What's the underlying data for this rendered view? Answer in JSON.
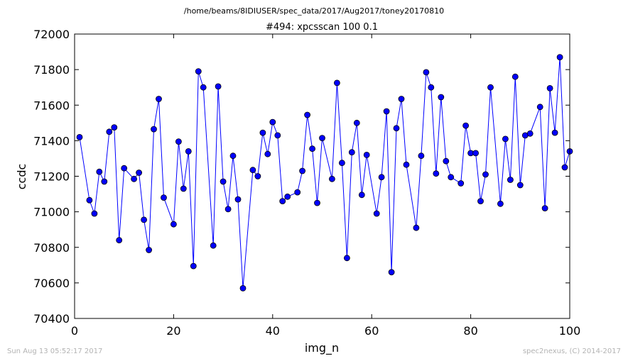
{
  "header": {
    "file_path": "/home/beams/8IDIUSER/spec_data/2017/Aug2017/toney20170810"
  },
  "footer": {
    "timestamp": "Sun Aug 13 05:52:17 2017",
    "credit": "spec2nexus, (C) 2014-2017"
  },
  "chart_data": {
    "type": "line",
    "title": "#494: xpcsscan 100 0.1",
    "xlabel": "img_n",
    "ylabel": "ccdc",
    "xlim": [
      0,
      100
    ],
    "ylim": [
      70400,
      72000
    ],
    "xticks": [
      0,
      20,
      40,
      60,
      80,
      100
    ],
    "yticks": [
      70400,
      70600,
      70800,
      71000,
      71200,
      71400,
      71600,
      71800,
      72000
    ],
    "line_color": "#0000ff",
    "marker_color": "#0000ff",
    "marker": "circle",
    "x": [
      1,
      3,
      4,
      5,
      6,
      7,
      8,
      9,
      10,
      12,
      13,
      14,
      15,
      16,
      17,
      18,
      20,
      21,
      22,
      23,
      24,
      25,
      26,
      28,
      29,
      30,
      31,
      32,
      33,
      34,
      36,
      37,
      38,
      39,
      40,
      41,
      42,
      43,
      45,
      46,
      47,
      48,
      49,
      50,
      52,
      53,
      54,
      55,
      56,
      57,
      58,
      59,
      61,
      62,
      63,
      64,
      65,
      66,
      67,
      69,
      70,
      71,
      72,
      73,
      74,
      75,
      76,
      78,
      79,
      80,
      81,
      82,
      83,
      84,
      86,
      87,
      88,
      89,
      90,
      91,
      92,
      94,
      95,
      96,
      97,
      98,
      99,
      100
    ],
    "y": [
      71420,
      71065,
      70990,
      71225,
      71170,
      71450,
      71475,
      70840,
      71245,
      71185,
      71220,
      70955,
      70785,
      71465,
      71635,
      71080,
      70930,
      71395,
      71130,
      71340,
      70695,
      71790,
      71700,
      70810,
      71705,
      71170,
      71015,
      71315,
      71070,
      70570,
      71235,
      71200,
      71445,
      71325,
      71505,
      71430,
      71060,
      71085,
      71110,
      71230,
      71545,
      71355,
      71050,
      71415,
      71185,
      71725,
      71275,
      70740,
      71335,
      71500,
      71095,
      71320,
      70990,
      71195,
      71565,
      70660,
      71470,
      71635,
      71265,
      70910,
      71315,
      71785,
      71700,
      71215,
      71645,
      71285,
      71195,
      71160,
      71485,
      71330,
      71330,
      71060,
      71210,
      71700,
      71045,
      71410,
      71180,
      71760,
      71150,
      71430,
      71440,
      71590,
      71020,
      71695,
      71445,
      71870,
      71250,
      71340
    ]
  }
}
